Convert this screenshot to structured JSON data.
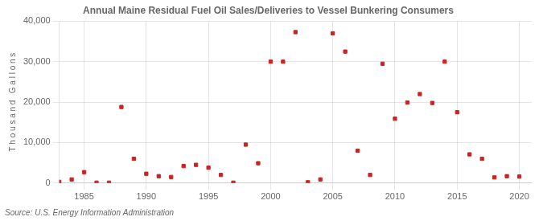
{
  "chart_data": {
    "type": "scatter",
    "title": "Annual Maine Residual Fuel Oil Sales/Deliveries to Vessel Bunkering Consumers",
    "ylabel": "T h o u s a n d   G a l l o n s",
    "source": "Source: U.S. Energy Information Administration",
    "color": "#cc2222",
    "marker": "square",
    "grid": true,
    "x": [
      1983,
      1984,
      1985,
      1986,
      1987,
      1988,
      1989,
      1990,
      1991,
      1992,
      1993,
      1994,
      1995,
      1996,
      1997,
      1998,
      1999,
      2000,
      2001,
      2002,
      2003,
      2004,
      2005,
      2006,
      2007,
      2008,
      2009,
      2010,
      2011,
      2012,
      2013,
      2014,
      2015,
      2016,
      2017,
      2018,
      2019,
      2020
    ],
    "values": [
      300,
      900,
      2700,
      100,
      100,
      18800,
      6000,
      2300,
      1700,
      1500,
      4200,
      4500,
      3800,
      2000,
      100,
      9500,
      4900,
      30000,
      30000,
      37300,
      200,
      900,
      37000,
      32500,
      8000,
      2000,
      29500,
      15900,
      19900,
      22000,
      19800,
      30000,
      17500,
      7100,
      6000,
      1400,
      1700,
      1600
    ],
    "xlim": [
      1983,
      2021
    ],
    "ylim": [
      0,
      40000
    ],
    "xticks": [
      1985,
      1990,
      1995,
      2000,
      2005,
      2010,
      2015,
      2020
    ],
    "yticks": [
      0,
      {
        "value": 10000,
        "label": "10,000"
      },
      {
        "value": 20000,
        "label": "20,000"
      },
      {
        "value": 30000,
        "label": "30,000"
      },
      {
        "value": 40000,
        "label": "40,000"
      }
    ]
  }
}
